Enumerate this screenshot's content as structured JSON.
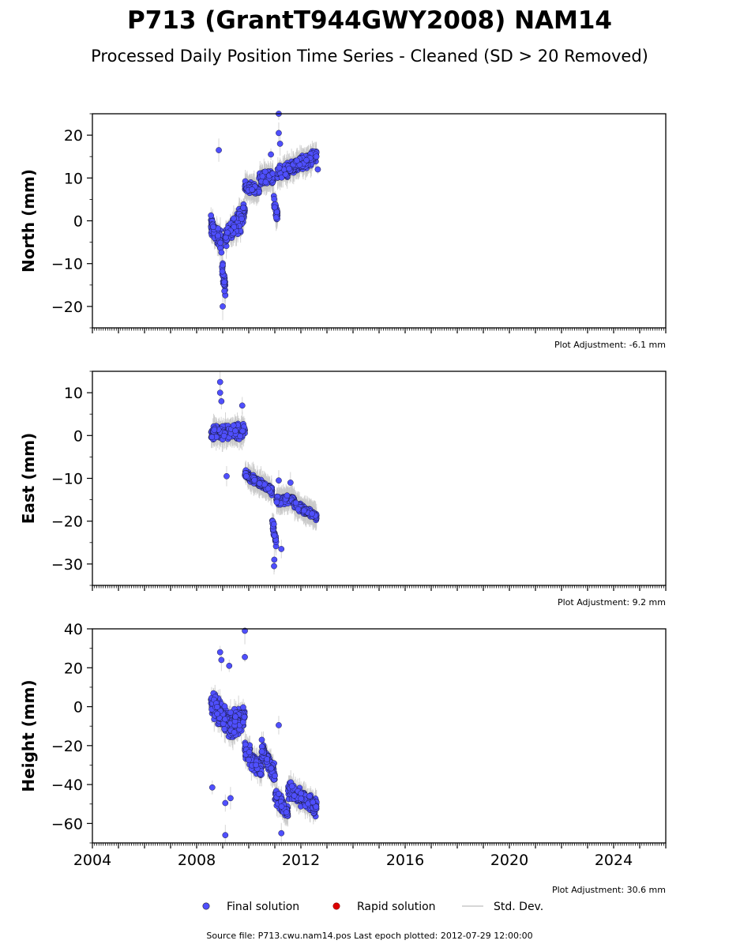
{
  "title": "P713 (GrantT944GWY2008) NAM14",
  "subtitle": "Processed Daily Position Time Series - Cleaned (SD > 20 Removed)",
  "source": "Source file: P713.cwu.nam14.pos  Last epoch plotted: 2012-07-29 12:00:00",
  "legend": {
    "final": "Final solution",
    "rapid": "Rapid solution",
    "std": "Std. Dev."
  },
  "colors": {
    "final": "#4f4fff",
    "rapid": "#dd0000",
    "std": "#c8c8c8"
  },
  "chart_data": [
    {
      "type": "scatter",
      "name": "north",
      "ylabel": "North (mm)",
      "adjustment": "Plot Adjustment: -6.1 mm",
      "xlim": [
        2004,
        2026
      ],
      "ylim": [
        -25,
        25
      ],
      "yticks": [
        -20,
        -10,
        0,
        10,
        20
      ],
      "yticklabels": [
        "−20",
        "−10",
        "0",
        "10",
        "20"
      ],
      "segments": [
        {
          "t0": 2008.55,
          "t1": 2008.95,
          "v0": -1,
          "v1": -5,
          "noise": 3.2
        },
        {
          "t0": 2008.95,
          "t1": 2009.1,
          "v0": -10,
          "v1": -16,
          "noise": 3.5
        },
        {
          "t0": 2009.1,
          "t1": 2009.85,
          "v0": -4,
          "v1": 2,
          "noise": 3.5
        },
        {
          "t0": 2009.85,
          "t1": 2010.4,
          "v0": 8,
          "v1": 7,
          "noise": 1.6
        },
        {
          "t0": 2010.4,
          "t1": 2010.95,
          "v0": 10,
          "v1": 10,
          "noise": 2.3
        },
        {
          "t0": 2010.95,
          "t1": 2011.1,
          "v0": 5,
          "v1": 1,
          "noise": 2.2
        },
        {
          "t0": 2011.1,
          "t1": 2012.6,
          "v0": 11,
          "v1": 15,
          "noise": 2.3
        }
      ],
      "outliers": [
        [
          2008.85,
          16.5
        ],
        [
          2009.0,
          -20
        ],
        [
          2010.85,
          15.5
        ],
        [
          2011.15,
          25
        ],
        [
          2011.15,
          20.5
        ],
        [
          2011.2,
          18
        ],
        [
          2012.65,
          12
        ]
      ]
    },
    {
      "type": "scatter",
      "name": "east",
      "ylabel": "East (mm)",
      "adjustment": "Plot Adjustment: 9.2 mm",
      "xlim": [
        2004,
        2026
      ],
      "ylim": [
        -35,
        15
      ],
      "yticks": [
        -30,
        -20,
        -10,
        0,
        10
      ],
      "yticklabels": [
        "−30",
        "−20",
        "−10",
        "0",
        "10"
      ],
      "segments": [
        {
          "t0": 2008.55,
          "t1": 2009.85,
          "v0": 0.5,
          "v1": 1,
          "noise": 2.3
        },
        {
          "t0": 2009.85,
          "t1": 2010.9,
          "v0": -9,
          "v1": -13,
          "noise": 1.3
        },
        {
          "t0": 2010.9,
          "t1": 2011.05,
          "v0": -20,
          "v1": -25,
          "noise": 2.5
        },
        {
          "t0": 2011.05,
          "t1": 2011.75,
          "v0": -15,
          "v1": -15,
          "noise": 1.2
        },
        {
          "t0": 2011.75,
          "t1": 2012.6,
          "v0": -16,
          "v1": -19,
          "noise": 1.2
        }
      ],
      "outliers": [
        [
          2008.9,
          12.5
        ],
        [
          2008.9,
          10
        ],
        [
          2008.95,
          8
        ],
        [
          2009.15,
          -9.5
        ],
        [
          2009.75,
          7
        ],
        [
          2010.97,
          -30.5
        ],
        [
          2010.98,
          -29
        ],
        [
          2011.25,
          -26.5
        ],
        [
          2011.15,
          -10.5
        ],
        [
          2011.6,
          -11
        ]
      ]
    },
    {
      "type": "scatter",
      "name": "height",
      "ylabel": "Height (mm)",
      "adjustment": "Plot Adjustment: 30.6 mm",
      "xlim": [
        2004,
        2026
      ],
      "ylim": [
        -70,
        40
      ],
      "yticks": [
        -60,
        -40,
        -20,
        0,
        20,
        40
      ],
      "yticklabels": [
        "−60",
        "−40",
        "−20",
        "0",
        "20",
        "40"
      ],
      "xticks": [
        2004,
        2008,
        2012,
        2016,
        2020,
        2024
      ],
      "xticklabels": [
        "2004",
        "2008",
        "2012",
        "2016",
        "2020",
        "2024"
      ],
      "segments": [
        {
          "t0": 2008.55,
          "t1": 2009.3,
          "v0": 2,
          "v1": -10,
          "noise": 9
        },
        {
          "t0": 2009.3,
          "t1": 2009.85,
          "v0": -10,
          "v1": -5,
          "noise": 9
        },
        {
          "t0": 2009.85,
          "t1": 2010.5,
          "v0": -22,
          "v1": -33,
          "noise": 6
        },
        {
          "t0": 2010.5,
          "t1": 2011.0,
          "v0": -22,
          "v1": -35,
          "noise": 7
        },
        {
          "t0": 2011.0,
          "t1": 2011.5,
          "v0": -45,
          "v1": -55,
          "noise": 6
        },
        {
          "t0": 2011.5,
          "t1": 2012.6,
          "v0": -42,
          "v1": -52,
          "noise": 6
        }
      ],
      "outliers": [
        [
          2008.6,
          -41.5
        ],
        [
          2008.9,
          28
        ],
        [
          2008.95,
          24
        ],
        [
          2009.1,
          -49.5
        ],
        [
          2009.1,
          -66
        ],
        [
          2009.25,
          21
        ],
        [
          2009.3,
          -47
        ],
        [
          2009.85,
          39
        ],
        [
          2009.85,
          25.5
        ],
        [
          2011.15,
          -9.5
        ],
        [
          2011.25,
          -65
        ]
      ]
    }
  ]
}
